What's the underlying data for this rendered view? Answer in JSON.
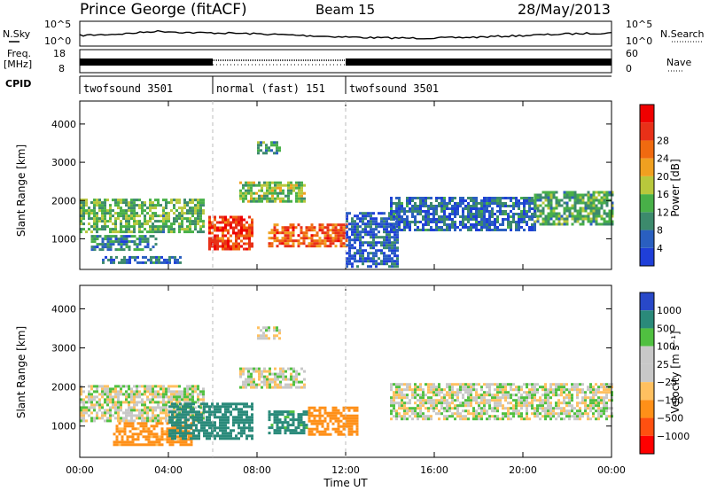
{
  "header": {
    "station": "Prince George (fitACF)",
    "beam": "Beam 15",
    "date": "28/May/2013"
  },
  "aux_panel": {
    "nsky_label": "N.Sky",
    "nsearch_label": "N.Search",
    "nsky_ticks": [
      "10^5",
      "10^0"
    ],
    "nsearch_ticks": [
      "10^5",
      "10^0"
    ],
    "freq_label_1": "Freq.",
    "freq_label_2": "[MHz]",
    "freq_ticks": [
      "18",
      "8"
    ],
    "nave_label": "Nave",
    "nave_ticks": [
      "60",
      "0"
    ],
    "cpid_label": "CPID"
  },
  "cpid_segments": [
    {
      "name": "twofsound 3501",
      "start_hour": 0,
      "end_hour": 6
    },
    {
      "name": "normal (fast) 151",
      "start_hour": 6,
      "end_hour": 12
    },
    {
      "name": "twofsound 3501",
      "start_hour": 12,
      "end_hour": 24
    }
  ],
  "colors": {
    "power": [
      "#1f3fd8",
      "#2a5fc0",
      "#3c8a6c",
      "#48b048",
      "#b8c83c",
      "#f0a020",
      "#f06a10",
      "#e83018",
      "#f00000"
    ],
    "velocity": [
      "#ff0000",
      "#ff5010",
      "#ff9018",
      "#ffc060",
      "#c8c8c8",
      "#c8c8c8",
      "#50c040",
      "#2a8a7a",
      "#2848c8"
    ]
  },
  "chart_data": [
    {
      "type": "heatmap",
      "panel": "power",
      "xlabel": "",
      "ylabel": "Slant Range [km]",
      "xlim": [
        0,
        24
      ],
      "ylim": [
        200,
        4600
      ],
      "yticks": [
        "1000",
        "2000",
        "3000",
        "4000"
      ],
      "colorbar": {
        "label": "Power [dB]",
        "ticks": [
          "4",
          "8",
          "12",
          "16",
          "20",
          "24",
          "28"
        ],
        "range": [
          0,
          32
        ]
      },
      "echo_regions": [
        {
          "t0": 0.0,
          "t1": 5.6,
          "r0": 1150,
          "r1": 2050,
          "level": 12
        },
        {
          "t0": 0.5,
          "t1": 3.5,
          "r0": 700,
          "r1": 1100,
          "level": 8
        },
        {
          "t0": 1.0,
          "t1": 4.5,
          "r0": 350,
          "r1": 550,
          "level": 6
        },
        {
          "t0": 5.8,
          "t1": 7.8,
          "r0": 700,
          "r1": 1600,
          "level": 26
        },
        {
          "t0": 8.5,
          "t1": 12.0,
          "r0": 800,
          "r1": 1400,
          "level": 24
        },
        {
          "t0": 7.2,
          "t1": 10.2,
          "r0": 2000,
          "r1": 2500,
          "level": 14
        },
        {
          "t0": 12.0,
          "t1": 14.3,
          "r0": 300,
          "r1": 1700,
          "level": 5
        },
        {
          "t0": 14.0,
          "t1": 20.5,
          "r0": 1200,
          "r1": 2100,
          "level": 6
        },
        {
          "t0": 20.5,
          "t1": 24.0,
          "r0": 1350,
          "r1": 2250,
          "level": 11
        },
        {
          "t0": 8.0,
          "t1": 9.0,
          "r0": 3250,
          "r1": 3550,
          "level": 10
        }
      ]
    },
    {
      "type": "heatmap",
      "panel": "velocity",
      "xlabel": "Time UT",
      "ylabel": "Slant Range [km]",
      "xlim": [
        0,
        24
      ],
      "ylim": [
        200,
        4600
      ],
      "xticks": [
        "00:00",
        "04:00",
        "08:00",
        "12:00",
        "16:00",
        "20:00",
        "00:00"
      ],
      "yticks": [
        "1000",
        "2000",
        "3000",
        "4000"
      ],
      "colorbar": {
        "label": "Velocity [m s⁻¹]",
        "ticks": [
          "1000",
          "500",
          "100",
          "25",
          "−25",
          "−100",
          "−500",
          "−1000"
        ]
      },
      "echo_regions": [
        {
          "t0": 0.0,
          "t1": 5.6,
          "r0": 1150,
          "r1": 2050,
          "level": 0
        },
        {
          "t0": 1.5,
          "t1": 5.0,
          "r0": 500,
          "r1": 1100,
          "level": -150
        },
        {
          "t0": 4.0,
          "t1": 7.8,
          "r0": 700,
          "r1": 1600,
          "level": 200
        },
        {
          "t0": 8.5,
          "t1": 10.3,
          "r0": 800,
          "r1": 1400,
          "level": 150
        },
        {
          "t0": 10.3,
          "t1": 12.5,
          "r0": 800,
          "r1": 1500,
          "level": -250
        },
        {
          "t0": 7.2,
          "t1": 10.2,
          "r0": 2000,
          "r1": 2500,
          "level": 0
        },
        {
          "t0": 14.0,
          "t1": 24.0,
          "r0": 1200,
          "r1": 2100,
          "level": 0
        },
        {
          "t0": 8.0,
          "t1": 9.0,
          "r0": 3250,
          "r1": 3550,
          "level": 0
        }
      ]
    }
  ]
}
